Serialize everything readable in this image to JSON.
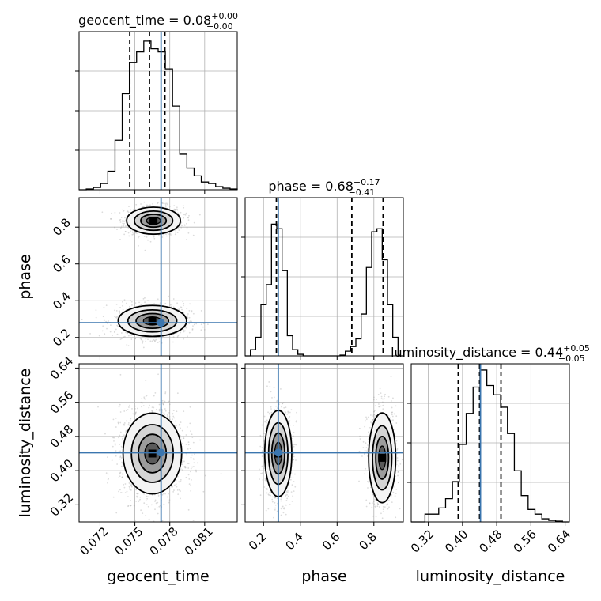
{
  "chart_data": {
    "type": "corner",
    "parameters": [
      "geocent_time",
      "phase",
      "luminosity_distance"
    ],
    "truth_color": "#3b76af",
    "titles": [
      {
        "param": "geocent_time",
        "text": "geocent_time = 0.08",
        "sup": "+0.00",
        "sub": "−0.00"
      },
      {
        "param": "phase",
        "text": "phase = 0.68",
        "sup": "+0.17",
        "sub": "−0.41"
      },
      {
        "param": "luminosity_distance",
        "text": "luminosity_distance = 0.44",
        "sup": "+0.05",
        "sub": "−0.05"
      }
    ],
    "axes": {
      "geocent_time": {
        "range": [
          0.0702,
          0.0838
        ],
        "ticks": [
          "0.072",
          "0.075",
          "0.078",
          "0.081"
        ],
        "tick_values": [
          0.072,
          0.075,
          0.078,
          0.081
        ],
        "truth": 0.07725,
        "quantiles": [
          0.07456,
          0.07625,
          0.07758
        ]
      },
      "phase": {
        "range": [
          0.1,
          0.96
        ],
        "ticks": [
          "0.2",
          "0.4",
          "0.6",
          "0.8"
        ],
        "tick_values": [
          0.2,
          0.4,
          0.6,
          0.8
        ],
        "truth": 0.28,
        "quantiles": [
          0.27,
          0.68,
          0.85
        ]
      },
      "luminosity_distance": {
        "range": [
          0.28,
          0.65
        ],
        "ticks": [
          "0.32",
          "0.40",
          "0.48",
          "0.56",
          "0.64"
        ],
        "tick_values": [
          0.32,
          0.4,
          0.48,
          0.56,
          0.64
        ],
        "truth": 0.442,
        "quantiles": [
          0.39,
          0.44,
          0.49
        ]
      }
    },
    "hist_geocent_time": [
      0.0,
      0.005,
      0.015,
      0.04,
      0.12,
      0.32,
      0.62,
      0.82,
      0.89,
      0.96,
      0.91,
      0.89,
      0.78,
      0.54,
      0.23,
      0.14,
      0.09,
      0.05,
      0.04,
      0.02,
      0.01,
      0.005
    ],
    "hist_phase": [
      0.0,
      0.04,
      0.12,
      0.33,
      0.46,
      0.85,
      0.82,
      0.55,
      0.13,
      0.04,
      0.01,
      0.0,
      0.0,
      0.0,
      0.0,
      0.0,
      0.0,
      0.0,
      0.005,
      0.03,
      0.06,
      0.11,
      0.27,
      0.57,
      0.8,
      0.82,
      0.62,
      0.33,
      0.12,
      0.0
    ],
    "hist_luminosity_distance": [
      0.0,
      0.0,
      0.05,
      0.05,
      0.09,
      0.15,
      0.26,
      0.5,
      0.7,
      0.87,
      0.98,
      0.88,
      0.82,
      0.74,
      0.57,
      0.33,
      0.17,
      0.08,
      0.05,
      0.02,
      0.01,
      0.005,
      0.0
    ],
    "modes_phase_vs_geocent_time": [
      {
        "x": 0.0766,
        "y": 0.835,
        "sx": 0.0011,
        "sy": 0.035
      },
      {
        "x": 0.0765,
        "y": 0.29,
        "sx": 0.0014,
        "sy": 0.04
      }
    ],
    "modes_luminosity_distance_vs_geocent_time": [
      {
        "x": 0.0765,
        "y": 0.44,
        "sx": 0.0012,
        "sy": 0.045
      }
    ],
    "modes_luminosity_distance_vs_phase": [
      {
        "x": 0.28,
        "y": 0.44,
        "sx": 0.035,
        "sy": 0.048
      },
      {
        "x": 0.845,
        "y": 0.43,
        "sx": 0.035,
        "sy": 0.05
      }
    ]
  }
}
